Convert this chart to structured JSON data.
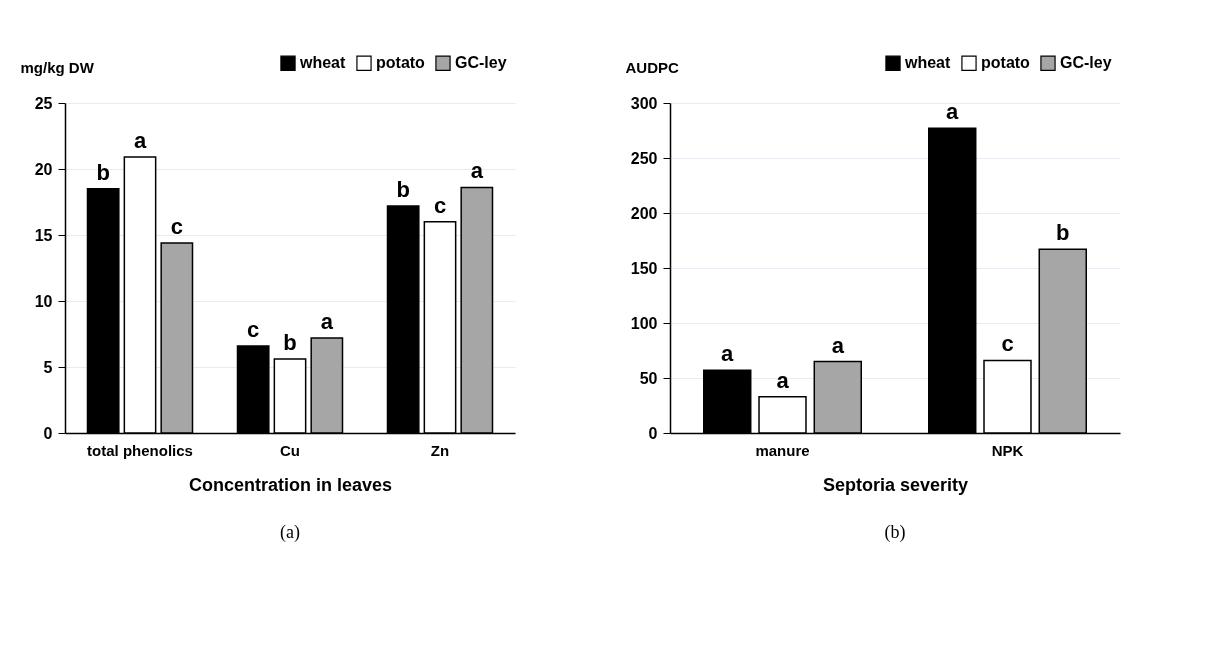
{
  "chart_data": [
    {
      "type": "bar",
      "ylabel": "mg/kg DW",
      "xlabel": "Concentration in leaves",
      "categories": [
        "total phenolics",
        "Cu",
        "Zn"
      ],
      "series": [
        {
          "name": "wheat",
          "color": "#000000",
          "values": [
            18.5,
            6.6,
            17.2
          ],
          "value_labels": [
            "b",
            "c",
            "b"
          ]
        },
        {
          "name": "potato",
          "color": "#ffffff",
          "values": [
            20.9,
            5.6,
            16.0
          ],
          "value_labels": [
            "a",
            "b",
            "c"
          ]
        },
        {
          "name": "GC-ley",
          "color": "#a6a6a6",
          "values": [
            14.4,
            7.2,
            18.6
          ],
          "value_labels": [
            "c",
            "a",
            "a"
          ]
        }
      ],
      "ylim": [
        0,
        25
      ],
      "yticks": [
        0,
        5,
        10,
        15,
        20,
        25
      ],
      "grid": "y",
      "legend": "top right",
      "annotations": [
        "(a)"
      ]
    },
    {
      "type": "bar",
      "ylabel": "AUDPC",
      "xlabel": "Septoria severity",
      "categories": [
        "manure",
        "NPK"
      ],
      "series": [
        {
          "name": "wheat",
          "color": "#000000",
          "values": [
            57,
            277
          ],
          "value_labels": [
            "a",
            "a"
          ]
        },
        {
          "name": "potato",
          "color": "#ffffff",
          "values": [
            33,
            66
          ],
          "value_labels": [
            "a",
            "c"
          ]
        },
        {
          "name": "GC-ley",
          "color": "#a6a6a6",
          "values": [
            65,
            167
          ],
          "value_labels": [
            "a",
            "b"
          ]
        }
      ],
      "ylim": [
        0,
        300
      ],
      "yticks": [
        0,
        50,
        100,
        150,
        200,
        250,
        300
      ],
      "grid": "y",
      "legend": "top right",
      "annotations": [
        "(b)"
      ]
    }
  ]
}
